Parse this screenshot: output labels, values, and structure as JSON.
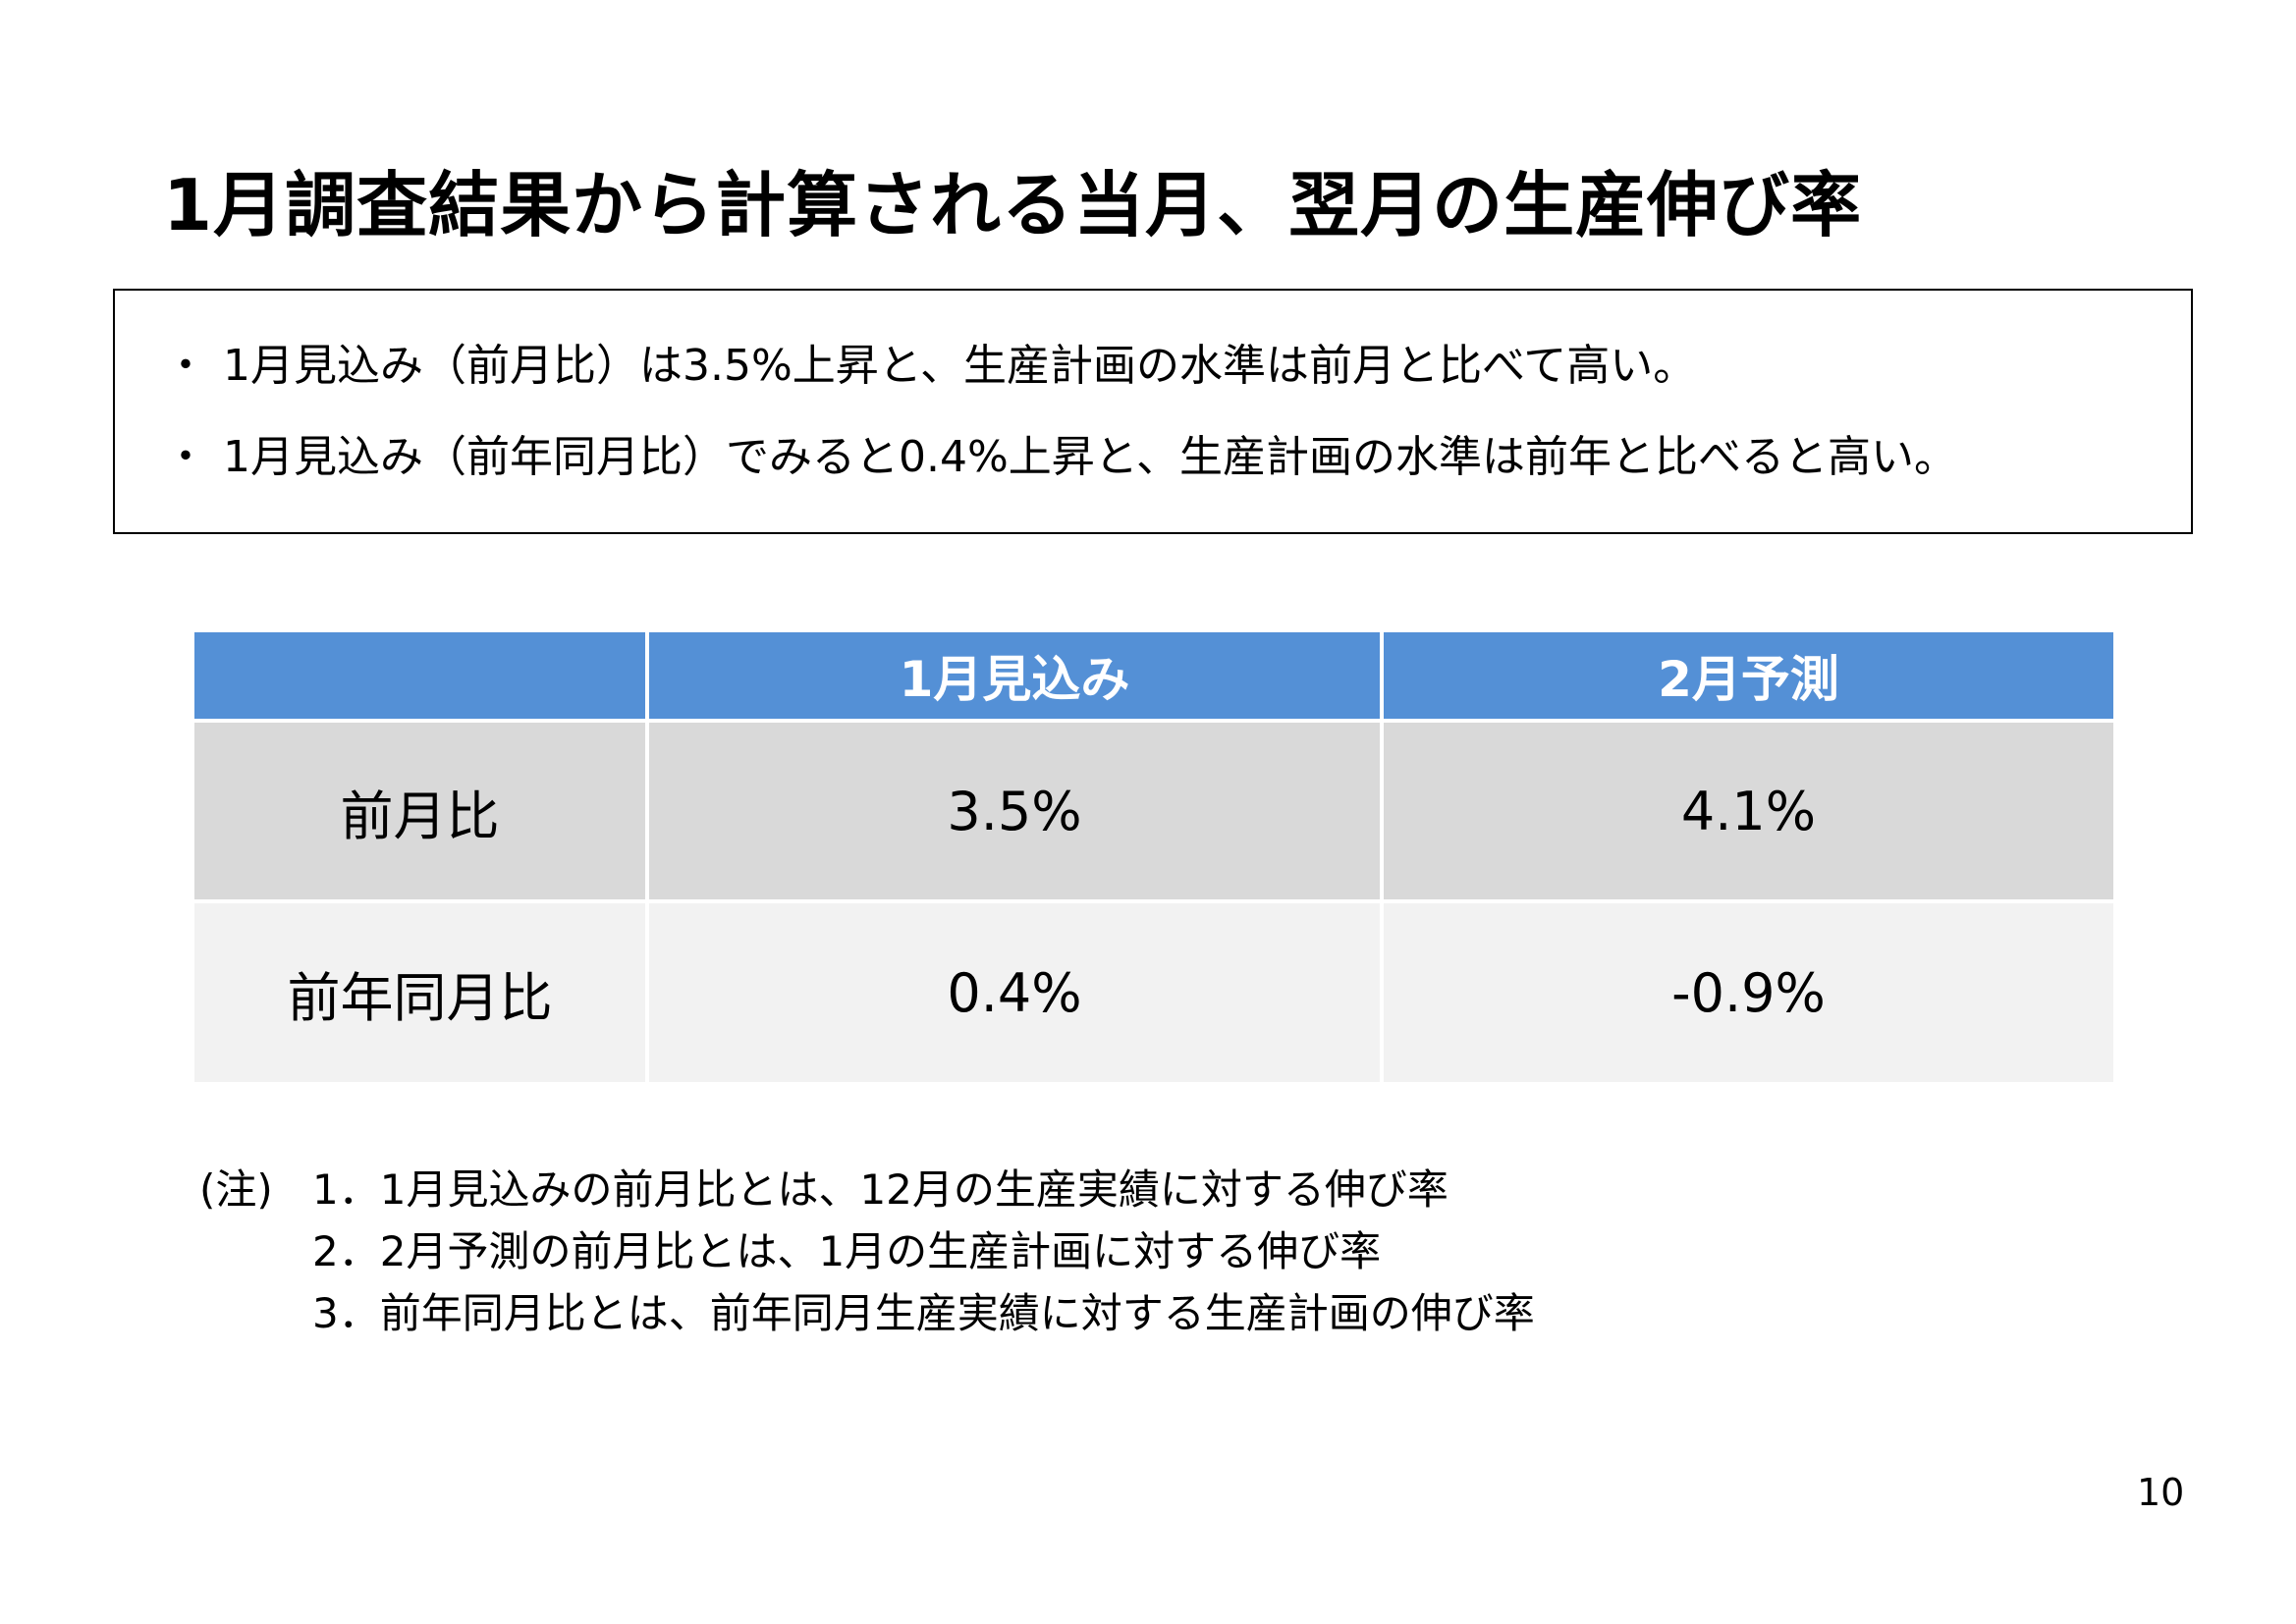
{
  "title": "1月調査結果から計算される当月、翌月の生産伸び率",
  "summary": {
    "bullet_symbol": "・",
    "bullets": [
      "1月見込み（前月比）は3.5%上昇と、生産計画の水準は前月と比べて高い。",
      "1月見込み（前年同月比）でみると0.4%上昇と、生産計画の水準は前年と比べると高い。"
    ]
  },
  "table": {
    "headers": [
      "",
      "1月見込み",
      "2月予測"
    ],
    "rows": [
      {
        "label": "前月比",
        "values": [
          "3.5%",
          "4.1%"
        ]
      },
      {
        "label": "前年同月比",
        "values": [
          "0.4%",
          "-0.9%"
        ]
      }
    ],
    "colors": {
      "header": "#5490d6",
      "row1": "#d9d9d9",
      "row2": "#f2f2f2"
    }
  },
  "notes": {
    "label": "(注)",
    "items": [
      "1．1月見込みの前月比とは、12月の生産実績に対する伸び率",
      "2．2月予測の前月比とは、1月の生産計画に対する伸び率",
      "3．前年同月比とは、前年同月生産実績に対する生産計画の伸び率"
    ]
  },
  "page_number": "10"
}
